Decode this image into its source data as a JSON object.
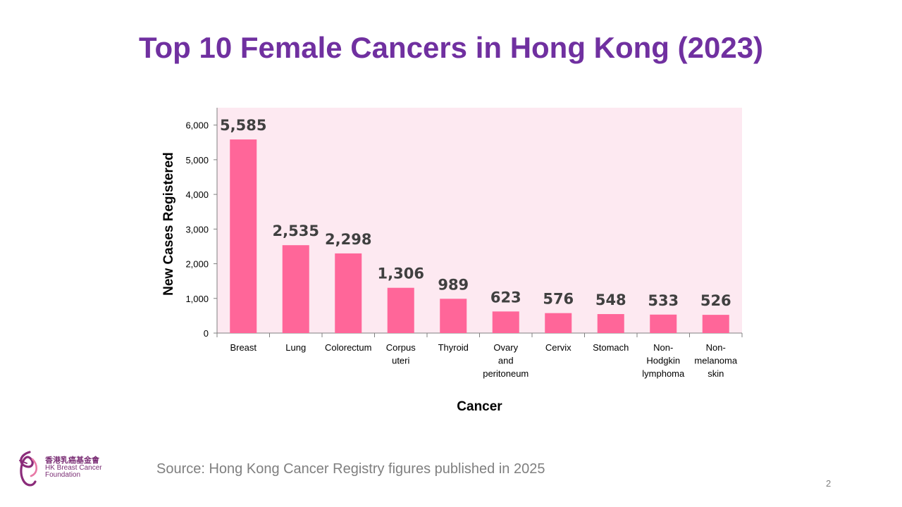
{
  "slide": {
    "title": "Top 10 Female Cancers in Hong Kong (2023)",
    "source": "Source: Hong Kong Cancer Registry figures published in 2025",
    "page_number": "2"
  },
  "logo": {
    "name_cn": "香港乳癌基金會",
    "name_en_line1": "HK Breast Cancer",
    "name_en_line2": "Foundation"
  },
  "colors": {
    "title": "#7030a0",
    "bar": "#ff6699",
    "plot_bg": "#fde9f1",
    "label": "#404040"
  },
  "chart_data": {
    "type": "bar",
    "title": "",
    "xlabel": "Cancer",
    "ylabel": "New Cases Registered",
    "ylim": [
      0,
      6500
    ],
    "yticks": [
      0,
      1000,
      2000,
      3000,
      4000,
      5000,
      6000
    ],
    "ytick_labels": [
      "0",
      "1,000",
      "2,000",
      "3,000",
      "4,000",
      "5,000",
      "6,000"
    ],
    "categories": [
      [
        "Breast"
      ],
      [
        "Lung"
      ],
      [
        "Colorectum"
      ],
      [
        "Corpus",
        "uteri"
      ],
      [
        "Thyroid"
      ],
      [
        "Ovary",
        "and",
        "peritoneum"
      ],
      [
        "Cervix"
      ],
      [
        "Stomach"
      ],
      [
        "Non-",
        "Hodgkin",
        "lymphoma"
      ],
      [
        "Non-",
        "melanoma",
        "skin"
      ]
    ],
    "values": [
      5585,
      2535,
      2298,
      1306,
      989,
      623,
      576,
      548,
      533,
      526
    ],
    "value_labels": [
      "5,585",
      "2,535",
      "2,298",
      "1,306",
      "989",
      "623",
      "576",
      "548",
      "533",
      "526"
    ]
  }
}
